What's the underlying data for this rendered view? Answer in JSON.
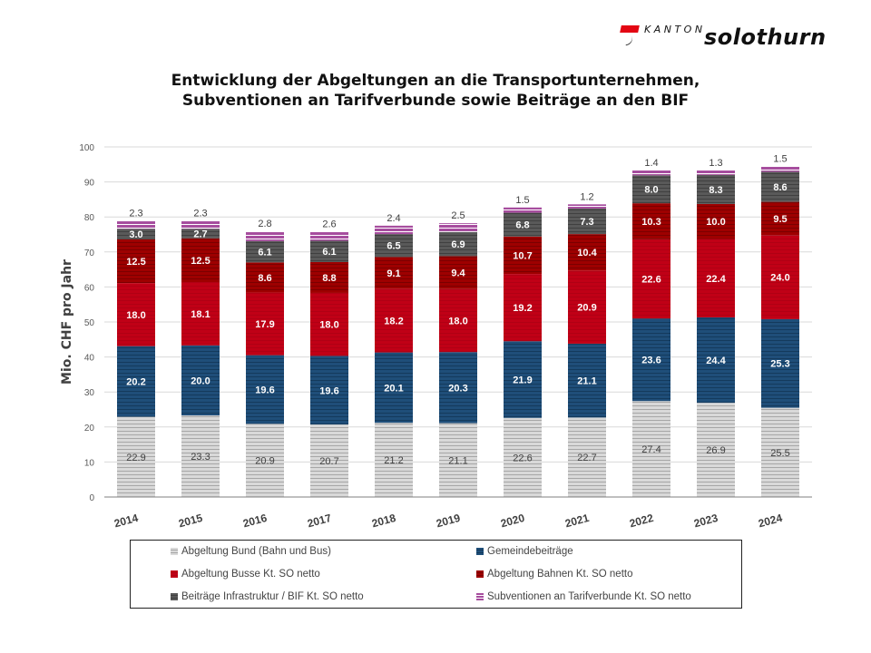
{
  "logo": {
    "kanton": "KANTON",
    "name": "solothurn",
    "brand_color": "#e30613"
  },
  "chart_data": {
    "type": "bar",
    "stacked": true,
    "title": "Entwicklung der Abgeltungen an die Transportunternehmen, Subventionen an Tarifverbunde sowie Beiträge an den BIF",
    "title_lines": [
      "Entwicklung der Abgeltungen an die Transportunternehmen,",
      "Subventionen an Tarifverbunde sowie Beiträge an den BIF"
    ],
    "xlabel": "",
    "ylabel": "Mio. CHF pro Jahr",
    "ylim": [
      0,
      100
    ],
    "yticks": [
      0,
      10,
      20,
      30,
      40,
      50,
      60,
      70,
      80,
      90,
      100
    ],
    "grid": true,
    "legend_position": "bottom",
    "categories": [
      "2014",
      "2015",
      "2016",
      "2017",
      "2018",
      "2019",
      "2020",
      "2021",
      "2022",
      "2023",
      "2024"
    ],
    "series": [
      {
        "name": "Abgeltung Bund (Bahn und Bus)",
        "color": "#d9d9d9",
        "stripe": "#a6a6a6",
        "label_color": "#404040",
        "values": [
          22.9,
          23.3,
          20.9,
          20.7,
          21.2,
          21.1,
          22.6,
          22.7,
          27.4,
          26.9,
          25.5
        ]
      },
      {
        "name": "Gemeindebeiträge",
        "color": "#1f4e79",
        "stripe": "#143a5c",
        "label_color": "#ffffff",
        "values": [
          20.2,
          20.0,
          19.6,
          19.6,
          20.1,
          20.3,
          21.9,
          21.1,
          23.6,
          24.4,
          25.3
        ]
      },
      {
        "name": "Abgeltung Busse Kt. SO netto",
        "color": "#c00016",
        "stripe": "#b00014",
        "label_color": "#ffffff",
        "values": [
          18.0,
          18.1,
          17.9,
          18.0,
          18.2,
          18.0,
          19.2,
          20.9,
          22.6,
          22.4,
          24.0
        ]
      },
      {
        "name": "Abgeltung Bahnen Kt. SO netto",
        "color": "#9e0000",
        "stripe": "#7a0000",
        "label_color": "#ffffff",
        "values": [
          12.5,
          12.5,
          8.6,
          8.8,
          9.1,
          9.4,
          10.7,
          10.4,
          10.3,
          10.0,
          9.5
        ]
      },
      {
        "name": "Beiträge Infrastruktur / BIF Kt. SO netto",
        "color": "#595959",
        "stripe": "#404040",
        "label_color": "#ffffff",
        "values": [
          3.0,
          2.7,
          6.1,
          6.1,
          6.5,
          6.9,
          6.8,
          7.3,
          8.0,
          8.3,
          8.6
        ]
      },
      {
        "name": "Subventionen an Tarifverbunde Kt. SO netto",
        "color": "#a64d9e",
        "stripe": "#ffffff",
        "label_color": "#404040",
        "values": [
          2.3,
          2.3,
          2.8,
          2.6,
          2.4,
          2.5,
          1.5,
          1.2,
          1.4,
          1.3,
          1.5
        ]
      }
    ]
  }
}
